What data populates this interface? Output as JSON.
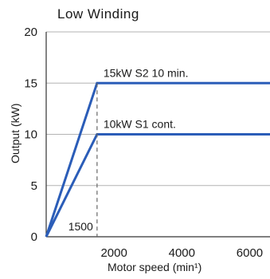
{
  "chart_data": {
    "type": "line",
    "title": "Low Winding",
    "xlabel": "Motor speed (min¹)",
    "ylabel": "Output (kW)",
    "xlim": [
      0,
      6600
    ],
    "ylim": [
      0,
      20
    ],
    "grid": true,
    "x_ticks": [
      "2000",
      "4000",
      "6000"
    ],
    "y_ticks": [
      "0",
      "5",
      "10",
      "15",
      "20"
    ],
    "series": [
      {
        "name": "15kW S2 10 min.",
        "color": "#2b5db8",
        "x": [
          0,
          1500,
          6600
        ],
        "y": [
          0,
          15,
          15
        ]
      },
      {
        "name": "10kW S1 cont.",
        "color": "#2b5db8",
        "x": [
          0,
          1500,
          6600
        ],
        "y": [
          0,
          10,
          10
        ]
      }
    ],
    "annotations": [
      {
        "text": "1500",
        "x": 1500,
        "y": 0
      }
    ]
  }
}
